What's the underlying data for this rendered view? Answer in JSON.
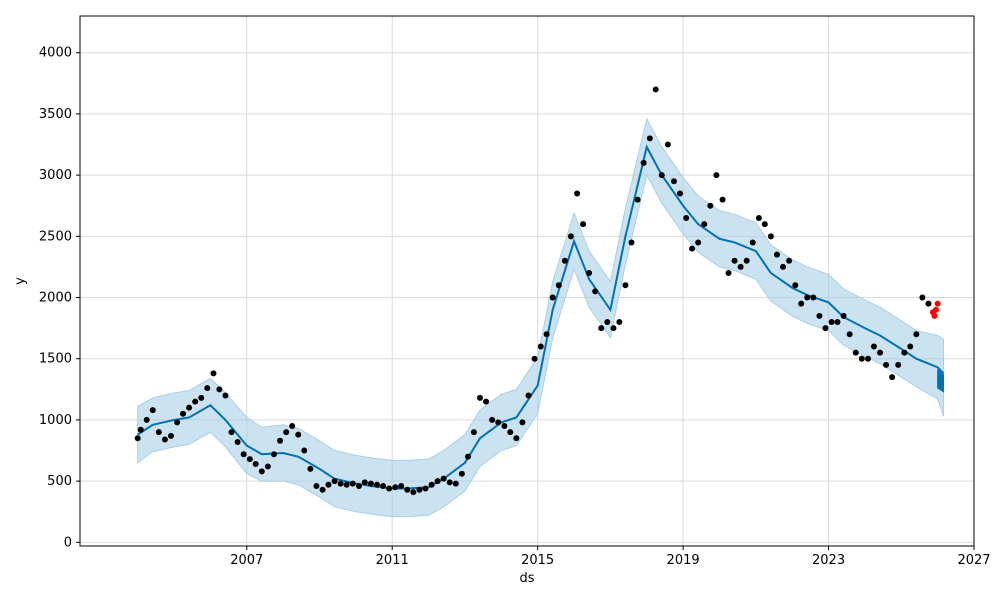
{
  "chart_data": {
    "type": "line",
    "title": "",
    "xlabel": "ds",
    "ylabel": "y",
    "x_ticks": [
      "2007",
      "2011",
      "2015",
      "2019",
      "2023",
      "2027"
    ],
    "y_ticks": [
      "0",
      "500",
      "1000",
      "1500",
      "2000",
      "2500",
      "3000",
      "3500",
      "4000"
    ],
    "xlim": [
      "2002-06-01",
      "2027-01-01"
    ],
    "ylim": [
      -30,
      4300
    ],
    "grid": true,
    "colors": {
      "forecast": "#0072B2",
      "interval": "#a9cfe6",
      "observed": "#000000",
      "recent": "#ff0000"
    },
    "series": [
      {
        "role": "observed",
        "x": [
          "2004-01-01",
          "2004-02-01",
          "2004-04-01",
          "2004-06-01",
          "2004-08-01",
          "2004-10-01",
          "2004-12-01",
          "2005-02-01",
          "2005-04-01",
          "2005-06-01",
          "2005-08-01",
          "2005-10-01",
          "2005-12-01",
          "2006-02-01",
          "2006-04-01",
          "2006-06-01",
          "2006-08-01",
          "2006-10-01",
          "2006-12-01",
          "2007-02-01",
          "2007-04-01",
          "2007-06-01",
          "2007-08-01",
          "2007-10-01",
          "2007-12-01",
          "2008-02-01",
          "2008-04-01",
          "2008-06-01",
          "2008-08-01",
          "2008-10-01",
          "2008-12-01",
          "2009-02-01",
          "2009-04-01",
          "2009-06-01",
          "2009-08-01",
          "2009-10-01",
          "2009-12-01",
          "2010-02-01",
          "2010-04-01",
          "2010-06-01",
          "2010-08-01",
          "2010-10-01",
          "2010-12-01",
          "2011-02-01",
          "2011-04-01",
          "2011-06-01",
          "2011-08-01",
          "2011-10-01",
          "2011-12-01",
          "2012-02-01",
          "2012-04-01",
          "2012-06-01",
          "2012-08-01",
          "2012-10-01",
          "2012-12-01",
          "2013-02-01",
          "2013-04-01",
          "2013-06-01",
          "2013-08-01",
          "2013-10-01",
          "2013-12-01",
          "2014-02-01",
          "2014-04-01",
          "2014-06-01",
          "2014-08-01",
          "2014-10-01",
          "2014-12-01",
          "2015-02-01",
          "2015-04-01",
          "2015-06-01",
          "2015-08-01",
          "2015-10-01",
          "2015-12-01",
          "2016-02-01",
          "2016-04-01",
          "2016-06-01",
          "2016-08-01",
          "2016-10-01",
          "2016-12-01",
          "2017-02-01",
          "2017-04-01",
          "2017-06-01",
          "2017-08-01",
          "2017-10-01",
          "2017-12-01",
          "2018-02-01",
          "2018-04-01",
          "2018-06-01",
          "2018-08-01",
          "2018-10-01",
          "2018-12-01",
          "2019-02-01",
          "2019-04-01",
          "2019-06-01",
          "2019-08-01",
          "2019-10-01",
          "2019-12-01",
          "2020-02-01",
          "2020-04-01",
          "2020-06-01",
          "2020-08-01",
          "2020-10-01",
          "2020-12-01",
          "2021-02-01",
          "2021-04-01",
          "2021-06-01",
          "2021-08-01",
          "2021-10-01",
          "2021-12-01",
          "2022-02-01",
          "2022-04-01",
          "2022-06-01",
          "2022-08-01",
          "2022-10-01",
          "2022-12-01",
          "2023-02-01",
          "2023-04-01",
          "2023-06-01",
          "2023-08-01",
          "2023-10-01",
          "2023-12-01",
          "2024-02-01",
          "2024-04-01",
          "2024-06-01",
          "2024-08-01",
          "2024-10-01",
          "2024-12-01",
          "2025-02-01",
          "2025-04-01",
          "2025-06-01",
          "2025-08-01",
          "2025-10-01"
        ],
        "y": [
          850,
          920,
          1000,
          1080,
          900,
          840,
          870,
          980,
          1050,
          1100,
          1150,
          1180,
          1260,
          1380,
          1250,
          1200,
          900,
          820,
          720,
          680,
          640,
          580,
          620,
          720,
          830,
          900,
          950,
          880,
          750,
          600,
          460,
          430,
          470,
          500,
          480,
          470,
          480,
          460,
          490,
          480,
          470,
          460,
          440,
          450,
          460,
          430,
          410,
          430,
          440,
          470,
          500,
          520,
          490,
          480,
          560,
          700,
          900,
          1180,
          1150,
          1000,
          980,
          950,
          900,
          850,
          980,
          1200,
          1500,
          1600,
          1700,
          2000,
          2100,
          2300,
          2500,
          2850,
          2600,
          2200,
          2050,
          1750,
          1800,
          1750,
          1800,
          2100,
          2450,
          2800,
          3100,
          3300,
          3700,
          3000,
          3250,
          2950,
          2850,
          2650,
          2400,
          2450,
          2600,
          2750,
          3000,
          2800,
          2200,
          2300,
          2250,
          2300,
          2450,
          2650,
          2600,
          2500,
          2350,
          2250,
          2300,
          2100,
          1950,
          2000,
          2000,
          1850,
          1750,
          1800,
          1800,
          1850,
          1700,
          1550,
          1500,
          1500,
          1600,
          1550,
          1450,
          1350,
          1450,
          1550,
          1600,
          1700,
          2000,
          1950
        ]
      },
      {
        "role": "recent",
        "x": [
          "2025-11-15",
          "2025-12-01",
          "2025-12-15",
          "2026-01-01"
        ],
        "y": [
          1880,
          1850,
          1900,
          1950
        ]
      },
      {
        "role": "forecast",
        "x": [
          "2004-01-01",
          "2004-06-01",
          "2005-01-01",
          "2005-06-01",
          "2006-01-01",
          "2006-06-01",
          "2007-01-01",
          "2007-06-01",
          "2008-01-01",
          "2008-06-01",
          "2009-01-01",
          "2009-06-01",
          "2010-01-01",
          "2010-06-01",
          "2011-01-01",
          "2011-06-01",
          "2012-01-01",
          "2012-06-01",
          "2013-01-01",
          "2013-06-01",
          "2014-01-01",
          "2014-06-01",
          "2015-01-01",
          "2015-06-01",
          "2016-01-01",
          "2016-06-01",
          "2017-01-01",
          "2017-06-01",
          "2018-01-01",
          "2018-06-01",
          "2019-01-01",
          "2019-06-01",
          "2020-01-01",
          "2020-06-01",
          "2021-01-01",
          "2021-06-01",
          "2022-01-01",
          "2022-06-01",
          "2023-01-01",
          "2023-06-01",
          "2024-01-01",
          "2024-06-01",
          "2025-01-01",
          "2025-06-01",
          "2026-01-01",
          "2026-03-01"
        ],
        "y": [
          880,
          960,
          1000,
          1020,
          1120,
          1000,
          790,
          720,
          730,
          700,
          600,
          520,
          480,
          460,
          440,
          440,
          450,
          520,
          650,
          850,
          980,
          1020,
          1280,
          1900,
          2460,
          2150,
          1900,
          2500,
          3230,
          3000,
          2750,
          2600,
          2480,
          2450,
          2380,
          2200,
          2080,
          2020,
          1960,
          1840,
          1750,
          1690,
          1580,
          1500,
          1430,
          1380
        ]
      },
      {
        "role": "interval",
        "x": [
          "2004-01-01",
          "2004-06-01",
          "2005-01-01",
          "2005-06-01",
          "2006-01-01",
          "2006-06-01",
          "2007-01-01",
          "2007-06-01",
          "2008-01-01",
          "2008-06-01",
          "2009-01-01",
          "2009-06-01",
          "2010-01-01",
          "2010-06-01",
          "2011-01-01",
          "2011-06-01",
          "2012-01-01",
          "2012-06-01",
          "2013-01-01",
          "2013-06-01",
          "2014-01-01",
          "2014-06-01",
          "2015-01-01",
          "2015-06-01",
          "2016-01-01",
          "2016-06-01",
          "2017-01-01",
          "2017-06-01",
          "2018-01-01",
          "2018-06-01",
          "2019-01-01",
          "2019-06-01",
          "2020-01-01",
          "2020-06-01",
          "2021-01-01",
          "2021-06-01",
          "2022-01-01",
          "2022-06-01",
          "2023-01-01",
          "2023-06-01",
          "2024-01-01",
          "2024-06-01",
          "2025-01-01",
          "2025-06-01",
          "2026-01-01",
          "2026-03-01"
        ],
        "lower": [
          650,
          740,
          780,
          800,
          900,
          780,
          560,
          500,
          500,
          470,
          370,
          290,
          250,
          230,
          210,
          210,
          220,
          290,
          420,
          620,
          750,
          790,
          1050,
          1670,
          2230,
          1920,
          1670,
          2270,
          3000,
          2770,
          2520,
          2370,
          2250,
          2220,
          2150,
          1970,
          1850,
          1790,
          1730,
          1610,
          1520,
          1460,
          1350,
          1270,
          1170,
          1030
        ],
        "upper": [
          1110,
          1180,
          1220,
          1240,
          1340,
          1220,
          1020,
          940,
          960,
          930,
          830,
          750,
          710,
          690,
          670,
          670,
          680,
          750,
          880,
          1080,
          1210,
          1250,
          1510,
          2130,
          2690,
          2380,
          2130,
          2730,
          3460,
          3230,
          2980,
          2830,
          2710,
          2680,
          2610,
          2430,
          2310,
          2250,
          2190,
          2070,
          1980,
          1920,
          1810,
          1730,
          1690,
          1660
        ]
      },
      {
        "role": "forecast-tail",
        "x": [
          "2026-01-01",
          "2026-03-01"
        ],
        "lower": [
          1260,
          1230
        ],
        "upper": [
          1410,
          1370
        ]
      }
    ]
  }
}
